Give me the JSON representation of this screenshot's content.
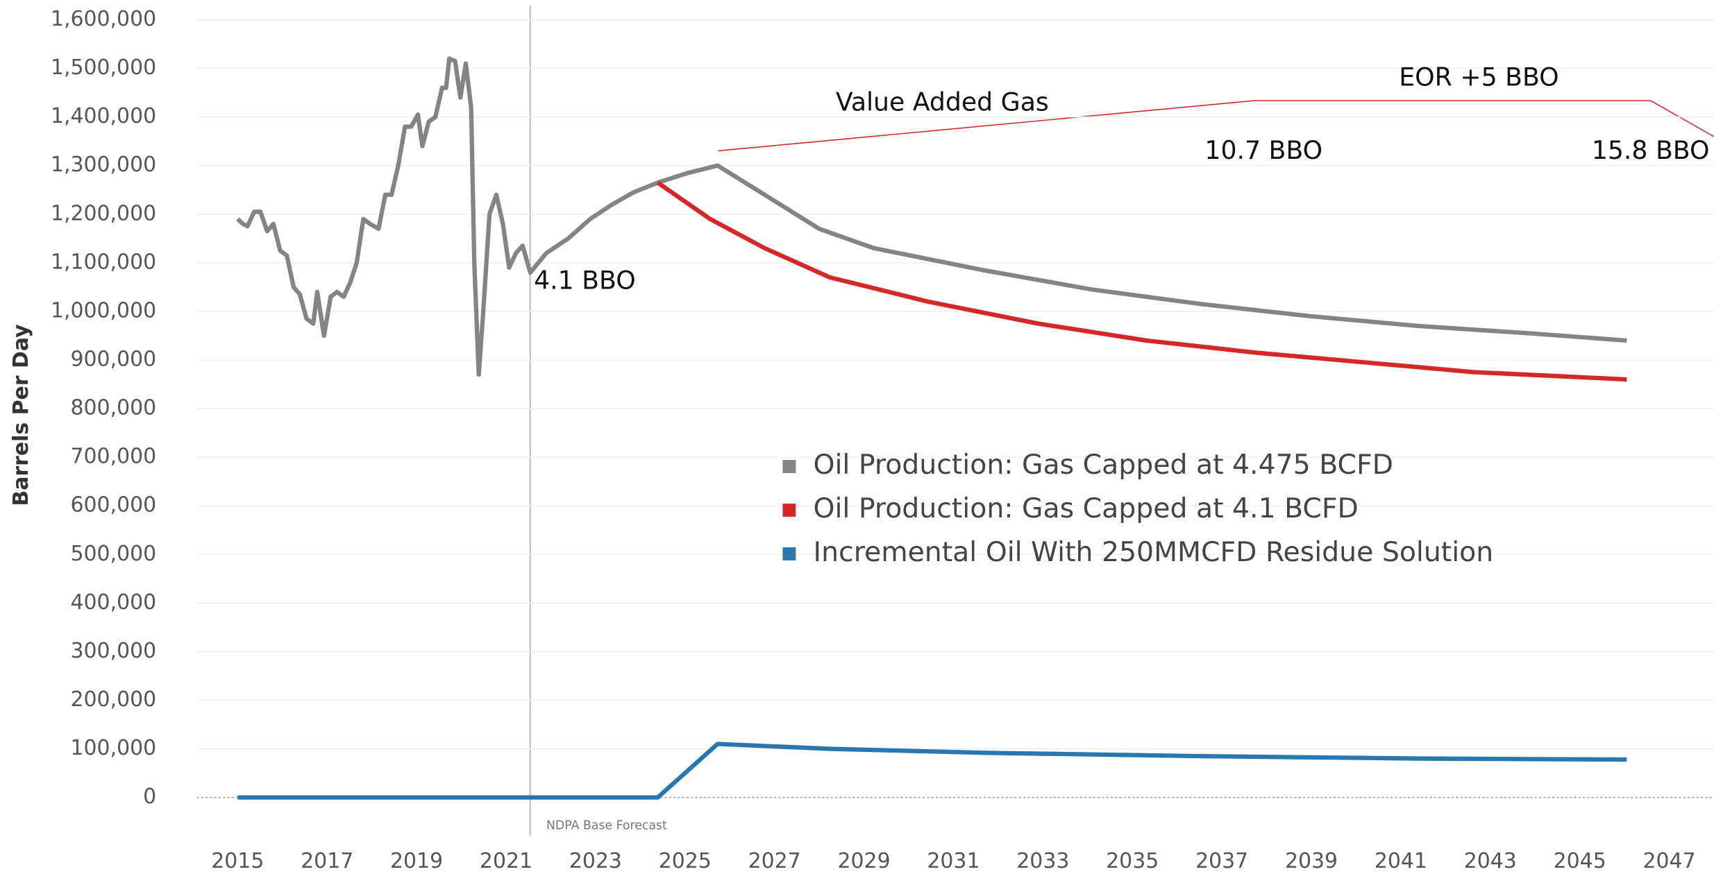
{
  "chart_data": {
    "type": "line",
    "y_label": "Barrels Per Day",
    "xlim": [
      2013.5,
      2048
    ],
    "ylim": [
      0,
      1600000
    ],
    "xticks": [
      2015,
      2017,
      2019,
      2021,
      2023,
      2025,
      2027,
      2029,
      2031,
      2033,
      2035,
      2037,
      2039,
      2041,
      2043,
      2045,
      2047
    ],
    "yticks": [
      {
        "value": 0,
        "label": "0"
      },
      {
        "value": 100000,
        "label": "100,000"
      },
      {
        "value": 200000,
        "label": "200,000"
      },
      {
        "value": 300000,
        "label": "300,000"
      },
      {
        "value": 400000,
        "label": "400,000"
      },
      {
        "value": 500000,
        "label": "500,000"
      },
      {
        "value": 600000,
        "label": "600,000"
      },
      {
        "value": 700000,
        "label": "700,000"
      },
      {
        "value": 800000,
        "label": "800,000"
      },
      {
        "value": 900000,
        "label": "900,000"
      },
      {
        "value": 1000000,
        "label": "1,000,000"
      },
      {
        "value": 1100000,
        "label": "1,100,000"
      },
      {
        "value": 1200000,
        "label": "1,200,000"
      },
      {
        "value": 1300000,
        "label": "1,300,000"
      },
      {
        "value": 1400000,
        "label": "1,400,000"
      },
      {
        "value": 1500000,
        "label": "1,500,000"
      },
      {
        "value": 1600000,
        "label": "1,600,000"
      }
    ],
    "grid": true,
    "legend": "center",
    "annotations": [
      "Value Added Gas",
      "EOR +5 BBO",
      "10.7 BBO",
      "15.8 BBO",
      "4.1 BBO",
      "NDPA Base Forecast"
    ],
    "series": [
      {
        "name": "Oil Production: Gas Capped at 4.475 BCFD",
        "color": "#848484",
        "x": [
          2015.0,
          2015.12,
          2015.22,
          2015.37,
          2015.51,
          2015.66,
          2015.8,
          2015.95,
          2016.1,
          2016.25,
          2016.39,
          2016.54,
          2016.69,
          2016.78,
          2016.93,
          2017.08,
          2017.22,
          2017.37,
          2017.52,
          2017.66,
          2017.81,
          2017.96,
          2018.15,
          2018.3,
          2018.44,
          2018.59,
          2018.74,
          2018.88,
          2019.03,
          2019.13,
          2019.27,
          2019.42,
          2019.57,
          2019.66,
          2019.73,
          2019.86,
          2019.98,
          2020.1,
          2020.22,
          2020.29,
          2020.39,
          2020.49,
          2020.63,
          2020.78,
          2020.93,
          2021.07,
          2021.22,
          2021.37,
          2021.54,
          2021.9,
          2022.39,
          2022.88,
          2023.37,
          2023.85,
          2024.39,
          2025.07,
          2025.73,
          2026.78,
          2028.0,
          2029.22,
          2031.66,
          2034.1,
          2036.54,
          2038.98,
          2041.41,
          2043.85,
          2046.05
        ],
        "values": [
          1190000,
          1180000,
          1175000,
          1205000,
          1205000,
          1165000,
          1180000,
          1125000,
          1115000,
          1050000,
          1035000,
          985000,
          975000,
          1040000,
          950000,
          1030000,
          1040000,
          1030000,
          1060000,
          1100000,
          1190000,
          1180000,
          1170000,
          1240000,
          1240000,
          1300000,
          1380000,
          1380000,
          1405000,
          1340000,
          1390000,
          1400000,
          1460000,
          1460000,
          1520000,
          1515000,
          1440000,
          1510000,
          1420000,
          1100000,
          870000,
          1000000,
          1200000,
          1240000,
          1180000,
          1090000,
          1120000,
          1135000,
          1080000,
          1120000,
          1150000,
          1190000,
          1220000,
          1245000,
          1265000,
          1285000,
          1300000,
          1240000,
          1170000,
          1130000,
          1085000,
          1045000,
          1015000,
          990000,
          970000,
          955000,
          940000
        ]
      },
      {
        "name": "Oil Production: Gas Capped at 4.1 BCFD",
        "color": "#d62728",
        "x": [
          2024.39,
          2025.56,
          2026.78,
          2028.24,
          2030.44,
          2032.88,
          2035.32,
          2037.76,
          2040.2,
          2042.63,
          2046.05
        ],
        "values": [
          1265000,
          1190000,
          1130000,
          1070000,
          1020000,
          975000,
          940000,
          915000,
          895000,
          875000,
          860000
        ]
      },
      {
        "name": "Incremental Oil With 250MMCFD Residue Solution",
        "color": "#2a77b0",
        "x": [
          2015.0,
          2024.39,
          2025.73,
          2028.24,
          2031.66,
          2036.54,
          2041.41,
          2046.05
        ],
        "values": [
          0,
          0,
          110000,
          100000,
          92000,
          85000,
          80000,
          78000
        ]
      }
    ]
  }
}
